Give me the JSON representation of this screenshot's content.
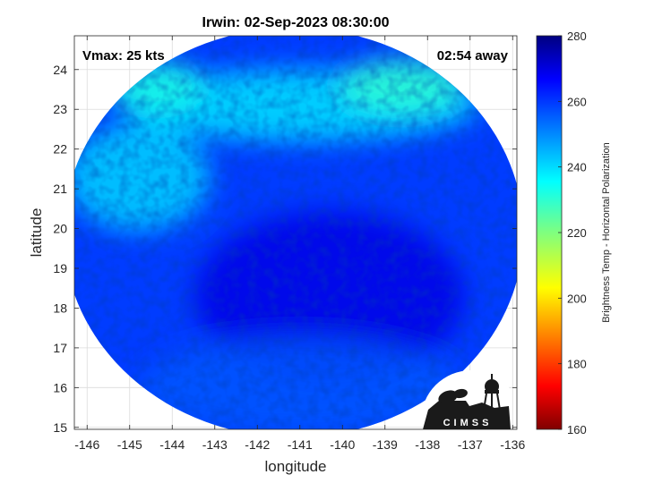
{
  "chart_data": {
    "type": "heatmap",
    "title": "Irwin: 02-Sep-2023 08:30:00",
    "xlabel": "longitude",
    "ylabel": "latitude",
    "xlim": [
      -146.3,
      -135.9
    ],
    "ylim": [
      14.95,
      24.85
    ],
    "xticks": [
      -146,
      -145,
      -144,
      -143,
      -142,
      -141,
      -140,
      -139,
      -138,
      -137,
      -136
    ],
    "yticks": [
      15,
      16,
      17,
      18,
      19,
      20,
      21,
      22,
      23,
      24
    ],
    "grid": true,
    "annotations": {
      "left": "Vmax: 25 kts",
      "right": "02:54 away"
    },
    "swath": {
      "center_lon": -141.15,
      "center_lat": 19.9,
      "radius_lon": 5.4,
      "radius_lat": 5.15
    },
    "colorbar": {
      "label": "Brightness Temp - Horizontal Polarization",
      "range": [
        160,
        280
      ],
      "ticks": [
        160,
        180,
        200,
        220,
        240,
        260,
        280
      ],
      "colormap": "jet"
    },
    "field_regions": [
      {
        "description": "cold (dark blue) core",
        "lon": -140.3,
        "lat": 18.3,
        "value": 268
      },
      {
        "description": "warm cyan band north",
        "lon": -141.0,
        "lat": 23.1,
        "value": 238
      },
      {
        "description": "cyan-green patch NW",
        "lon": -144.4,
        "lat": 23.6,
        "value": 232
      },
      {
        "description": "cyan-green patch NE",
        "lon": -138.6,
        "lat": 23.6,
        "value": 230
      },
      {
        "description": "cyan band west",
        "lon": -144.8,
        "lat": 21.3,
        "value": 240
      },
      {
        "description": "blue south",
        "lon": -141.0,
        "lat": 16.0,
        "value": 255
      }
    ],
    "logo": "CIMSS"
  }
}
